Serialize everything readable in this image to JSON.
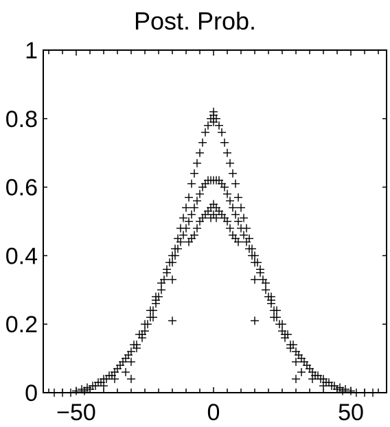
{
  "chart_data": {
    "type": "scatter",
    "title": "Post. Prob.",
    "xlabel": "",
    "ylabel": "",
    "xlim": [
      -62,
      63
    ],
    "ylim": [
      0,
      1
    ],
    "grid": false,
    "marker": "+",
    "color": "#000000",
    "x_ticks": [
      -50,
      0,
      50
    ],
    "x_tick_labels": [
      "−50",
      "0",
      "50"
    ],
    "y_ticks": [
      0,
      0.2,
      0.4,
      0.6,
      0.8,
      1
    ],
    "y_tick_labels": [
      "0",
      "0.2",
      "0.4",
      "0.6",
      "0.8",
      "1"
    ],
    "series": [
      {
        "points": [
          [
            0,
            0.82
          ],
          [
            0,
            0.81
          ],
          [
            0,
            0.8
          ],
          [
            0,
            0.79
          ],
          [
            -1,
            0.8
          ],
          [
            1,
            0.8
          ],
          [
            -2,
            0.78
          ],
          [
            2,
            0.78
          ],
          [
            -3,
            0.76
          ],
          [
            3,
            0.76
          ],
          [
            -4,
            0.73
          ],
          [
            4,
            0.73
          ],
          [
            -5,
            0.7
          ],
          [
            5,
            0.7
          ],
          [
            -6,
            0.67
          ],
          [
            6,
            0.67
          ],
          [
            -7,
            0.64
          ],
          [
            7,
            0.64
          ],
          [
            -8,
            0.61
          ],
          [
            8,
            0.61
          ],
          [
            -9,
            0.57
          ],
          [
            9,
            0.57
          ],
          [
            -10,
            0.54
          ],
          [
            10,
            0.54
          ],
          [
            -11,
            0.51
          ],
          [
            11,
            0.51
          ],
          [
            -12,
            0.48
          ],
          [
            12,
            0.48
          ],
          [
            -13,
            0.45
          ],
          [
            13,
            0.45
          ],
          [
            -14,
            0.42
          ],
          [
            14,
            0.42
          ],
          [
            -15,
            0.4
          ],
          [
            15,
            0.4
          ],
          [
            -16,
            0.38
          ],
          [
            16,
            0.38
          ],
          [
            -17,
            0.35
          ],
          [
            17,
            0.35
          ],
          [
            -18,
            0.33
          ],
          [
            18,
            0.33
          ],
          [
            -19,
            0.3
          ],
          [
            19,
            0.3
          ],
          [
            -20,
            0.28
          ],
          [
            20,
            0.28
          ],
          [
            -21,
            0.26
          ],
          [
            21,
            0.26
          ],
          [
            -22,
            0.24
          ],
          [
            22,
            0.24
          ],
          [
            -23,
            0.22
          ],
          [
            23,
            0.22
          ],
          [
            -24,
            0.2
          ],
          [
            24,
            0.2
          ],
          [
            -25,
            0.18
          ],
          [
            25,
            0.18
          ],
          [
            -26,
            0.16
          ],
          [
            26,
            0.16
          ],
          [
            -28,
            0.14
          ],
          [
            28,
            0.14
          ],
          [
            -30,
            0.12
          ],
          [
            30,
            0.12
          ],
          [
            -32,
            0.1
          ],
          [
            32,
            0.1
          ],
          [
            -34,
            0.08
          ],
          [
            34,
            0.08
          ],
          [
            -36,
            0.06
          ],
          [
            36,
            0.06
          ],
          [
            -38,
            0.05
          ],
          [
            38,
            0.05
          ],
          [
            -40,
            0.04
          ],
          [
            40,
            0.04
          ],
          [
            -42,
            0.03
          ],
          [
            42,
            0.03
          ],
          [
            -44,
            0.02
          ],
          [
            44,
            0.02
          ],
          [
            -46,
            0.015
          ],
          [
            46,
            0.015
          ],
          [
            -48,
            0.01
          ],
          [
            48,
            0.01
          ],
          [
            -50,
            0.005
          ],
          [
            50,
            0.005
          ],
          [
            -52,
            0.0
          ],
          [
            52,
            0.0
          ],
          [
            -55,
            0.0
          ],
          [
            55,
            0.0
          ],
          [
            -58,
            0.0
          ],
          [
            58,
            0.0
          ]
        ]
      },
      {
        "points": [
          [
            0,
            0.62
          ],
          [
            -1,
            0.62
          ],
          [
            1,
            0.62
          ],
          [
            -2,
            0.62
          ],
          [
            2,
            0.62
          ],
          [
            -3,
            0.61
          ],
          [
            3,
            0.61
          ],
          [
            -4,
            0.6
          ],
          [
            4,
            0.6
          ],
          [
            -5,
            0.58
          ],
          [
            5,
            0.58
          ],
          [
            -6,
            0.56
          ],
          [
            6,
            0.56
          ],
          [
            -7,
            0.54
          ],
          [
            7,
            0.54
          ],
          [
            -8,
            0.52
          ],
          [
            8,
            0.52
          ],
          [
            -9,
            0.5
          ],
          [
            9,
            0.5
          ],
          [
            -10,
            0.48
          ],
          [
            10,
            0.48
          ],
          [
            -11,
            0.46
          ],
          [
            11,
            0.46
          ],
          [
            -12,
            0.44
          ],
          [
            12,
            0.44
          ],
          [
            -13,
            0.42
          ],
          [
            13,
            0.42
          ],
          [
            -14,
            0.4
          ],
          [
            14,
            0.4
          ],
          [
            -15,
            0.38
          ],
          [
            15,
            0.38
          ],
          [
            -17,
            0.36
          ],
          [
            17,
            0.36
          ],
          [
            -19,
            0.32
          ],
          [
            19,
            0.32
          ],
          [
            -21,
            0.28
          ],
          [
            21,
            0.28
          ],
          [
            -23,
            0.24
          ],
          [
            23,
            0.24
          ],
          [
            -25,
            0.2
          ],
          [
            25,
            0.2
          ],
          [
            -27,
            0.17
          ],
          [
            27,
            0.17
          ],
          [
            -29,
            0.14
          ],
          [
            29,
            0.14
          ],
          [
            -31,
            0.11
          ],
          [
            31,
            0.11
          ],
          [
            -33,
            0.09
          ],
          [
            33,
            0.09
          ],
          [
            -35,
            0.07
          ],
          [
            35,
            0.07
          ],
          [
            -37,
            0.05
          ],
          [
            37,
            0.05
          ],
          [
            -39,
            0.04
          ],
          [
            39,
            0.04
          ],
          [
            -41,
            0.03
          ],
          [
            41,
            0.03
          ],
          [
            -43,
            0.02
          ],
          [
            43,
            0.02
          ],
          [
            -45,
            0.01
          ],
          [
            45,
            0.01
          ],
          [
            -47,
            0.005
          ],
          [
            47,
            0.005
          ]
        ]
      },
      {
        "points": [
          [
            0,
            0.55
          ],
          [
            0,
            0.52
          ],
          [
            -1,
            0.54
          ],
          [
            1,
            0.54
          ],
          [
            -1,
            0.51
          ],
          [
            1,
            0.51
          ],
          [
            -2,
            0.53
          ],
          [
            2,
            0.53
          ],
          [
            -3,
            0.52
          ],
          [
            3,
            0.52
          ],
          [
            -4,
            0.51
          ],
          [
            4,
            0.51
          ],
          [
            -5,
            0.5
          ],
          [
            5,
            0.5
          ],
          [
            -6,
            0.48
          ],
          [
            6,
            0.48
          ],
          [
            -7,
            0.46
          ],
          [
            7,
            0.46
          ],
          [
            -8,
            0.45
          ],
          [
            8,
            0.45
          ],
          [
            -9,
            0.44
          ],
          [
            9,
            0.44
          ],
          [
            -15,
            0.33
          ],
          [
            15,
            0.33
          ],
          [
            -15,
            0.21
          ],
          [
            15,
            0.21
          ],
          [
            -21,
            0.27
          ],
          [
            21,
            0.27
          ],
          [
            -22,
            0.22
          ],
          [
            22,
            0.22
          ],
          [
            -26,
            0.17
          ],
          [
            26,
            0.17
          ],
          [
            -28,
            0.13
          ],
          [
            28,
            0.13
          ],
          [
            -30,
            0.09
          ],
          [
            30,
            0.09
          ],
          [
            -30,
            0.04
          ],
          [
            30,
            0.04
          ],
          [
            -32,
            0.06
          ],
          [
            32,
            0.06
          ],
          [
            -36,
            0.04
          ],
          [
            36,
            0.04
          ],
          [
            -40,
            0.02
          ],
          [
            40,
            0.02
          ]
        ]
      }
    ]
  }
}
